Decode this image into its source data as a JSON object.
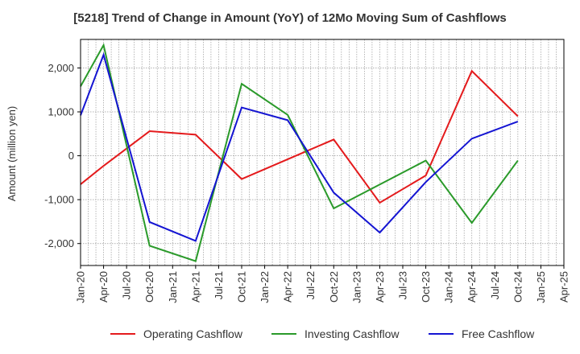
{
  "chart_data": {
    "type": "line",
    "title": "[5218]  Trend of Change in Amount (YoY) of 12Mo Moving Sum of Cashflows",
    "xlabel": "",
    "ylabel": "Amount (million yen)",
    "categories": [
      "Jan-20",
      "Apr-20",
      "Jul-20",
      "Oct-20",
      "Jan-21",
      "Apr-21",
      "Jul-21",
      "Oct-21",
      "Jan-22",
      "Apr-22",
      "Jul-22",
      "Oct-22",
      "Jan-23",
      "Apr-23",
      "Jul-23",
      "Oct-23",
      "Jan-24",
      "Apr-24",
      "Jul-24",
      "Oct-24",
      "Jan-25",
      "Apr-25"
    ],
    "ylim": [
      -2500,
      2650
    ],
    "yticks": [
      -2000,
      -1000,
      0,
      1000,
      2000
    ],
    "ytick_labels": [
      "-2,000",
      "-1,000",
      "0",
      "1,000",
      "2,000"
    ],
    "grid": true,
    "legend_position": "bottom",
    "series": [
      {
        "name": "Operating Cashflow",
        "color": "#e41a1c",
        "points": [
          [
            "Jan-20",
            -650
          ],
          [
            "Apr-20",
            -230
          ],
          [
            "Oct-20",
            560
          ],
          [
            "Apr-21",
            480
          ],
          [
            "Oct-21",
            -530
          ],
          [
            "Oct-22",
            370
          ],
          [
            "Apr-23",
            -1070
          ],
          [
            "Oct-23",
            -450
          ],
          [
            "Apr-24",
            1930
          ],
          [
            "Oct-24",
            900
          ]
        ]
      },
      {
        "name": "Investing Cashflow",
        "color": "#2a9a2a",
        "points": [
          [
            "Jan-20",
            1580
          ],
          [
            "Apr-20",
            2520
          ],
          [
            "Oct-20",
            -2050
          ],
          [
            "Apr-21",
            -2400
          ],
          [
            "Oct-21",
            1640
          ],
          [
            "Apr-22",
            930
          ],
          [
            "Oct-22",
            -1200
          ],
          [
            "Oct-23",
            -110
          ],
          [
            "Apr-24",
            -1530
          ],
          [
            "Oct-24",
            -110
          ]
        ]
      },
      {
        "name": "Free Cashflow",
        "color": "#1414d2",
        "points": [
          [
            "Jan-20",
            920
          ],
          [
            "Apr-20",
            2300
          ],
          [
            "Oct-20",
            -1510
          ],
          [
            "Apr-21",
            -1940
          ],
          [
            "Oct-21",
            1100
          ],
          [
            "Apr-22",
            810
          ],
          [
            "Oct-22",
            -840
          ],
          [
            "Apr-23",
            -1750
          ],
          [
            "Oct-23",
            -600
          ],
          [
            "Apr-24",
            390
          ],
          [
            "Oct-24",
            780
          ]
        ]
      }
    ]
  }
}
